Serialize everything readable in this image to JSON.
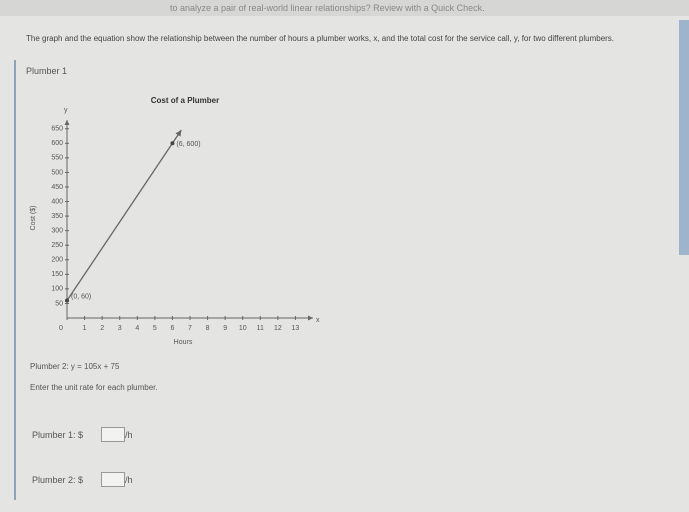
{
  "header": {
    "title": "to analyze a pair of real-world linear relationships? Review with a Quick Check."
  },
  "question": {
    "prompt": "The graph and the equation show the relationship between the number of hours a plumber works, x, and the total cost for the service call, y, for two different plumbers.",
    "plumber_1_label": "Plumber 1",
    "plumber_2_equation": "Plumber 2: y = 105x + 75",
    "instruction": "Enter the unit rate for each plumber.",
    "answers": [
      {
        "label": "Plumber 1: $",
        "unit": "/h"
      },
      {
        "label": "Plumber 2: $",
        "unit": "/h"
      }
    ]
  },
  "chart_data": {
    "type": "line",
    "title": "Cost of a Plumber",
    "x_label": "Hours",
    "y_label": "Cost ($)",
    "x_axis_name": "x",
    "y_axis_name": "y",
    "x": [
      0,
      6
    ],
    "series": [
      {
        "color": "#666666",
        "values": [
          60,
          600
        ],
        "value_labels": [
          "(0, 60)",
          "(6, 600)"
        ]
      }
    ],
    "xlim": [
      0,
      14
    ],
    "ylim": [
      0,
      680
    ],
    "xticks": [
      0,
      1,
      2,
      3,
      4,
      5,
      6,
      7,
      8,
      9,
      10,
      11,
      12,
      13
    ],
    "yticks": [
      50,
      100,
      150,
      200,
      250,
      300,
      350,
      400,
      450,
      500,
      550,
      600,
      650
    ]
  }
}
